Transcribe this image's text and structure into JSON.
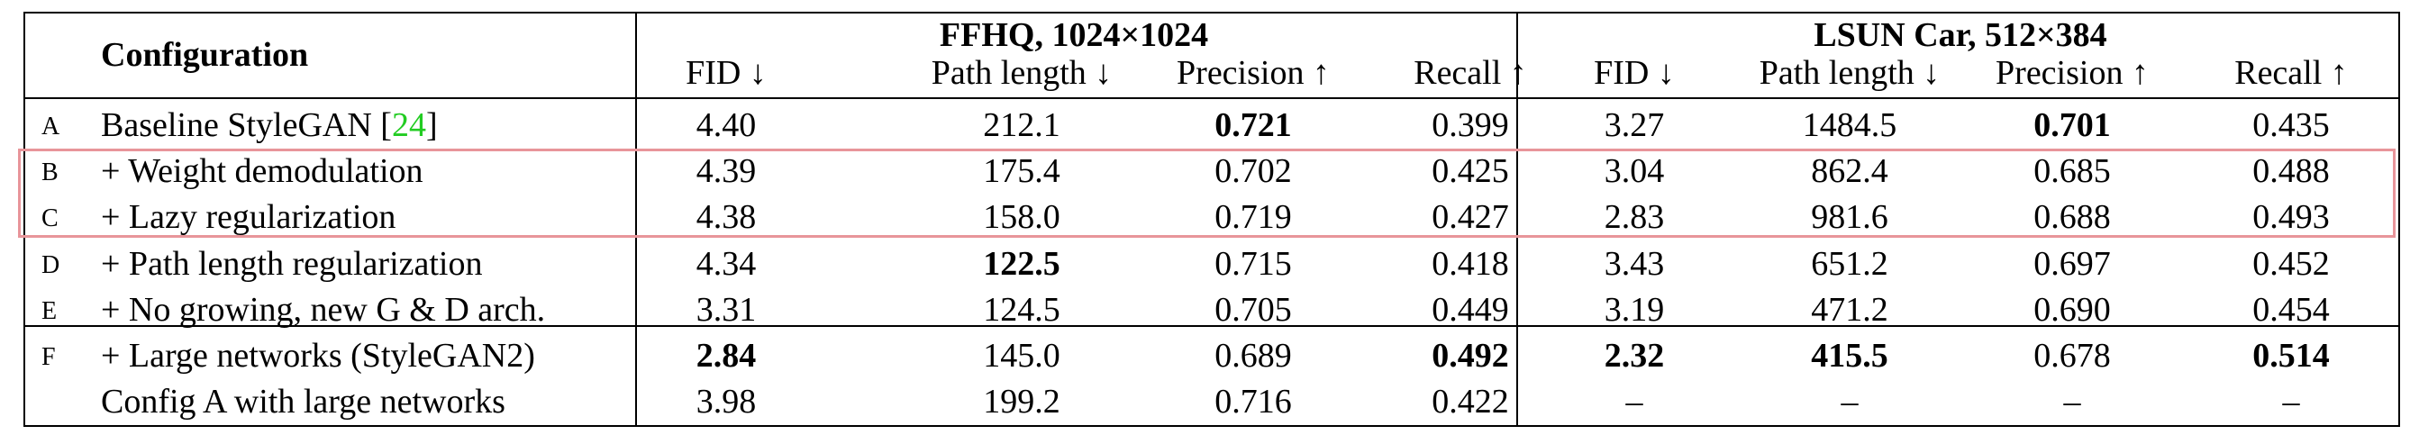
{
  "header": {
    "configuration": "Configuration",
    "group1": "FFHQ, 1024×1024",
    "group2": "LSUN Car, 512×384",
    "columns": [
      "FID ↓",
      "Path length ↓",
      "Precision ↑",
      "Recall ↑",
      "FID ↓",
      "Path length ↓",
      "Precision ↑",
      "Recall ↑"
    ]
  },
  "rows": [
    {
      "letter": "A",
      "config": "Baseline StyleGAN [",
      "ref": "24",
      "config_end": "]",
      "values": [
        "4.40",
        "212.1",
        "0.721",
        "0.399",
        "3.27",
        "1484.5",
        "0.701",
        "0.435"
      ],
      "bold": [
        false,
        false,
        true,
        false,
        false,
        false,
        true,
        false
      ]
    },
    {
      "letter": "B",
      "config": "+ Weight demodulation",
      "values": [
        "4.39",
        "175.4",
        "0.702",
        "0.425",
        "3.04",
        "862.4",
        "0.685",
        "0.488"
      ],
      "bold": [
        false,
        false,
        false,
        false,
        false,
        false,
        false,
        false
      ]
    },
    {
      "letter": "C",
      "config": "+ Lazy regularization",
      "values": [
        "4.38",
        "158.0",
        "0.719",
        "0.427",
        "2.83",
        "981.6",
        "0.688",
        "0.493"
      ],
      "bold": [
        false,
        false,
        false,
        false,
        false,
        false,
        false,
        false
      ]
    },
    {
      "letter": "D",
      "config": "+ Path length regularization",
      "values": [
        "4.34",
        "122.5",
        "0.715",
        "0.418",
        "3.43",
        "651.2",
        "0.697",
        "0.452"
      ],
      "bold": [
        false,
        true,
        false,
        false,
        false,
        false,
        false,
        false
      ]
    },
    {
      "letter": "E",
      "config": "+ No growing, new G & D arch.",
      "values": [
        "3.31",
        "124.5",
        "0.705",
        "0.449",
        "3.19",
        "471.2",
        "0.690",
        "0.454"
      ],
      "bold": [
        false,
        false,
        false,
        false,
        false,
        false,
        false,
        false
      ]
    },
    {
      "letter": "F",
      "config": "+ Large networks (StyleGAN2)",
      "values": [
        "2.84",
        "145.0",
        "0.689",
        "0.492",
        "2.32",
        "415.5",
        "0.678",
        "0.514"
      ],
      "bold": [
        true,
        false,
        false,
        true,
        true,
        true,
        false,
        true
      ]
    },
    {
      "letter": "",
      "config": "Config A with large networks",
      "values": [
        "3.98",
        "199.2",
        "0.716",
        "0.422",
        "–",
        "–",
        "–",
        "–"
      ],
      "bold": [
        false,
        false,
        false,
        false,
        false,
        false,
        false,
        false
      ]
    }
  ],
  "colors": {
    "highlight_border": "#e8959a",
    "reference_link": "#22cc22"
  }
}
